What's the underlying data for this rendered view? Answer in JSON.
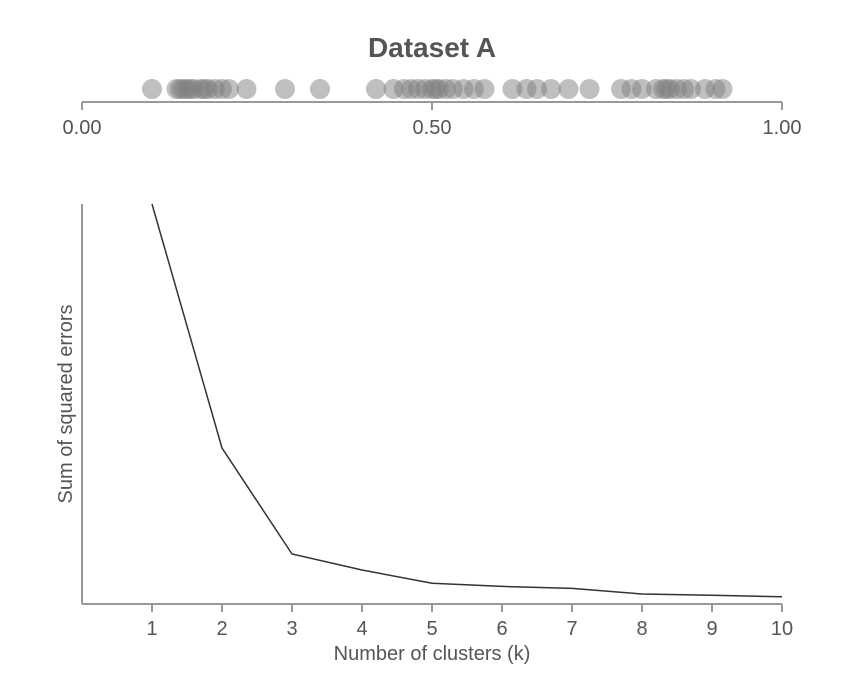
{
  "chart_data": [
    {
      "type": "strip",
      "title": "Dataset A",
      "xlim": [
        0,
        1
      ],
      "x_ticks": [
        {
          "value": 0.0,
          "label": "0.00"
        },
        {
          "value": 0.5,
          "label": "0.50"
        },
        {
          "value": 1.0,
          "label": "1.00"
        }
      ],
      "point_color": "#808080",
      "point_opacity": 0.5,
      "values": [
        0.1,
        0.135,
        0.14,
        0.145,
        0.15,
        0.155,
        0.16,
        0.17,
        0.175,
        0.18,
        0.19,
        0.2,
        0.21,
        0.235,
        0.29,
        0.34,
        0.42,
        0.445,
        0.46,
        0.47,
        0.48,
        0.49,
        0.5,
        0.505,
        0.51,
        0.52,
        0.53,
        0.545,
        0.56,
        0.575,
        0.615,
        0.635,
        0.65,
        0.67,
        0.695,
        0.725,
        0.77,
        0.785,
        0.8,
        0.82,
        0.83,
        0.835,
        0.84,
        0.85,
        0.86,
        0.87,
        0.89,
        0.905,
        0.915
      ]
    },
    {
      "type": "line",
      "xlabel": "Number of clusters (k)",
      "ylabel": "Sum of squared errors",
      "x": [
        1,
        2,
        3,
        4,
        5,
        6,
        7,
        8,
        9,
        10
      ],
      "y": [
        100,
        39,
        12.5,
        8.5,
        5.2,
        4.4,
        3.9,
        2.5,
        2.2,
        1.8
      ],
      "xlim": [
        0,
        10
      ],
      "ylim": [
        0,
        100
      ],
      "y_ticks_shown": false,
      "line_color": "#333333",
      "grid": false
    }
  ]
}
